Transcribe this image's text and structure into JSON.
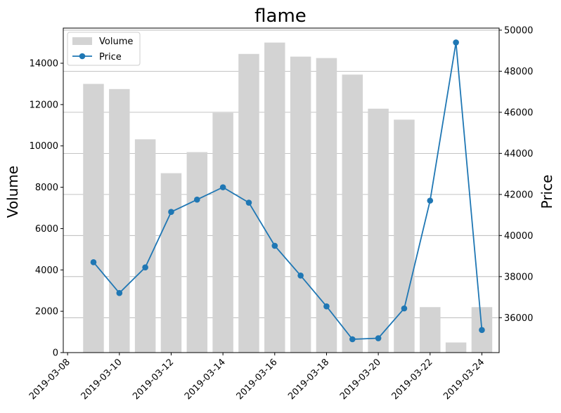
{
  "chart_data": {
    "type": "bar+line",
    "title": "flame",
    "xlabel": "",
    "ylabel_left": "Volume",
    "ylabel_right": "Price",
    "dates": [
      "2019-03-09",
      "2019-03-10",
      "2019-03-11",
      "2019-03-12",
      "2019-03-13",
      "2019-03-14",
      "2019-03-15",
      "2019-03-16",
      "2019-03-17",
      "2019-03-18",
      "2019-03-19",
      "2019-03-20",
      "2019-03-21",
      "2019-03-22",
      "2019-03-23",
      "2019-03-24"
    ],
    "x_ticks": [
      "2019-03-08",
      "2019-03-10",
      "2019-03-12",
      "2019-03-14",
      "2019-03-16",
      "2019-03-18",
      "2019-03-20",
      "2019-03-22",
      "2019-03-24"
    ],
    "xlim": [
      "2019-03-07T20:00",
      "2019-03-24T16:00"
    ],
    "series": [
      {
        "name": "Volume",
        "kind": "bar",
        "axis": "left",
        "color": "#d3d3d3",
        "values": [
          13000,
          12750,
          10320,
          8680,
          9700,
          11600,
          14450,
          15000,
          14320,
          14250,
          13450,
          11800,
          11270,
          2200,
          490,
          2200
        ]
      },
      {
        "name": "Price",
        "kind": "line",
        "axis": "right",
        "color": "#1f77b4",
        "values": [
          38700,
          37200,
          38450,
          41150,
          41750,
          42350,
          41600,
          39500,
          38050,
          36550,
          34950,
          35000,
          36450,
          41700,
          49400,
          35400
        ]
      }
    ],
    "ylim_left": [
      0,
      15700
    ],
    "yticks_left": [
      0,
      2000,
      4000,
      6000,
      8000,
      10000,
      12000,
      14000
    ],
    "ylim_right": [
      34300,
      50100
    ],
    "yticks_right": [
      36000,
      38000,
      40000,
      42000,
      44000,
      46000,
      48000,
      50000
    ],
    "grid": "horizontal, right axis",
    "legend": "upper-left"
  }
}
